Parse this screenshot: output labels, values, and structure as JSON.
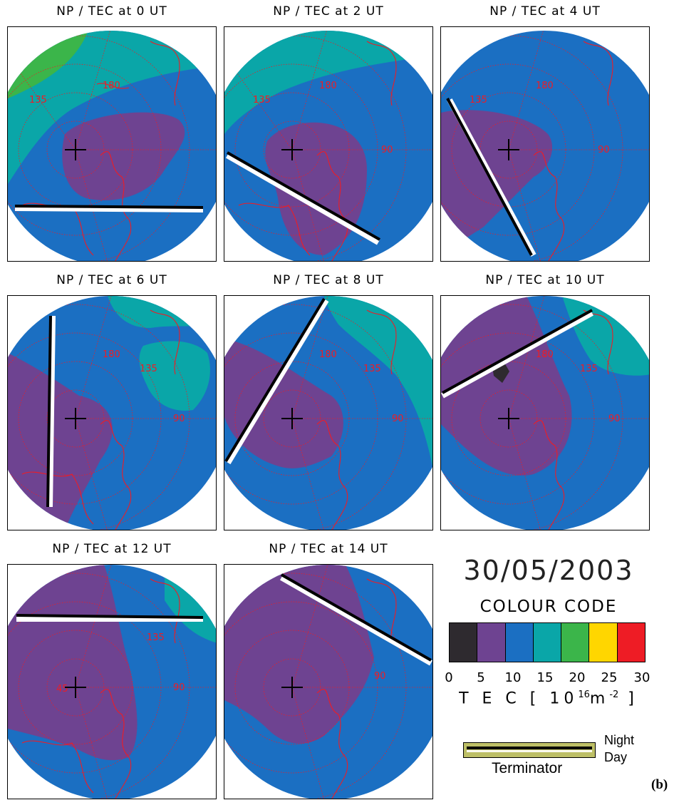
{
  "panels": [
    {
      "title": "NP / TEC at 0 UT"
    },
    {
      "title": "NP / TEC at 2 UT"
    },
    {
      "title": "NP / TEC at 4 UT"
    },
    {
      "title": "NP / TEC at 6 UT"
    },
    {
      "title": "NP / TEC at 8 UT"
    },
    {
      "title": "NP / TEC at 10 UT"
    },
    {
      "title": "NP / TEC at 12 UT"
    },
    {
      "title": "NP / TEC at 14 UT"
    }
  ],
  "map_labels": {
    "lon_180": "180",
    "lon_135": "135",
    "lon_90": "90",
    "lon_45": "45"
  },
  "legend": {
    "date": "30/05/2003",
    "colour_code_title": "COLOUR CODE",
    "swatch_colors": [
      "#2e2a2f",
      "#6e4391",
      "#1b6fc2",
      "#0aa6a8",
      "#3bb54a",
      "#ffd600",
      "#ee1c25"
    ],
    "ticks": [
      "0",
      "5",
      "10",
      "15",
      "20",
      "25",
      "30"
    ],
    "unit_prefix": "T E C [  10",
    "unit_exp1": "16",
    "unit_mid": "m",
    "unit_exp2": "-2",
    "unit_suffix": " ]",
    "terminator_label": "Terminator",
    "night_label": "Night",
    "day_label": "Day"
  },
  "figure_label": "(b)"
}
